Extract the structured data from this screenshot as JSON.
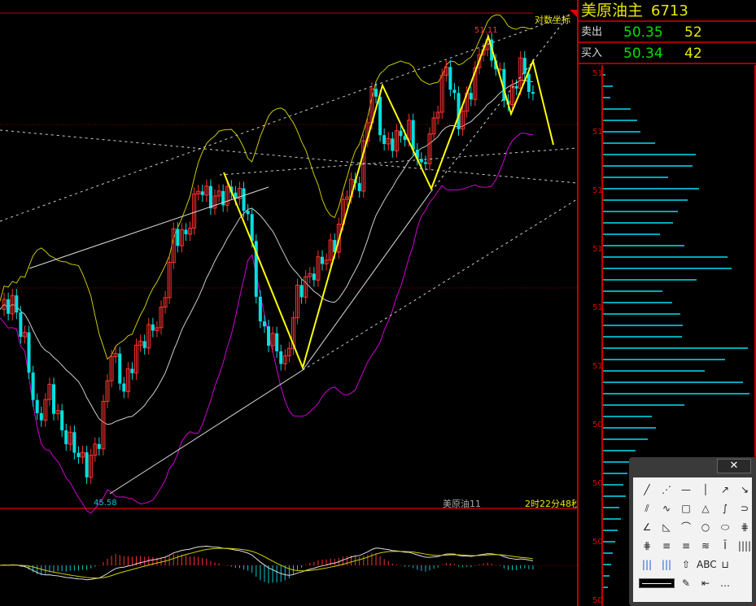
{
  "symbol": {
    "name": "美原油主",
    "code": "6713"
  },
  "quote": {
    "sell": {
      "label": "卖出",
      "price": "50.35",
      "qty": "52"
    },
    "buy": {
      "label": "买入",
      "price": "50.34",
      "qty": "42"
    }
  },
  "chart": {
    "log_scale_label": "对数坐标",
    "high_label": "51.11",
    "low_label": "45.58",
    "instrument_label": "美原油11",
    "countdown": "2时22分48秒",
    "up_color": "#ff3030",
    "down_color": "#00e0e0",
    "closes": [
      47.81,
      47.91,
      47.42,
      46.44,
      46.83,
      46.34,
      46.14,
      45.89,
      46.24,
      47.32,
      46.83,
      47.32,
      47.52,
      47.72,
      48.7,
      48.7,
      49.29,
      49.14,
      49.19,
      49.24,
      48.99,
      47.62,
      47.42,
      47.13,
      48.01,
      48.21,
      48.4,
      48.6,
      49.29,
      49.34,
      50.52,
      49.78,
      49.88,
      49.98,
      49.49,
      50.08,
      50.77,
      50.08,
      50.47,
      51.06,
      50.77,
      50.27,
      50.77,
      50.42
    ]
  },
  "profile": {
    "labels": [
      "51",
      "51",
      "51",
      "51",
      "51",
      "51",
      "50",
      "50",
      "50",
      "50"
    ],
    "bars": [
      3,
      12,
      9,
      34,
      42,
      46,
      64,
      114,
      110,
      80,
      118,
      104,
      92,
      86,
      70,
      100,
      153,
      158,
      115,
      73,
      85,
      95,
      98,
      97,
      178,
      150,
      125,
      172,
      180,
      100,
      60,
      65,
      55,
      40,
      35,
      30,
      25,
      28,
      20,
      22,
      18,
      15,
      12,
      10,
      8,
      6
    ]
  },
  "toolbox": {
    "close": "✕",
    "tools": [
      "╱",
      "⋰",
      "—",
      "│",
      "↗",
      "↘",
      "⫽",
      "∿",
      "□",
      "△",
      "∫",
      "⊃",
      "∠",
      "◺",
      "⌒",
      "○",
      "⬭",
      "⋕",
      "⋕",
      "≡",
      "≡",
      "≋",
      "Ī",
      "||||",
      "|||",
      "|||",
      "⇧",
      "ABC",
      "⊔",
      "",
      "✎",
      "⇤",
      "…"
    ]
  }
}
